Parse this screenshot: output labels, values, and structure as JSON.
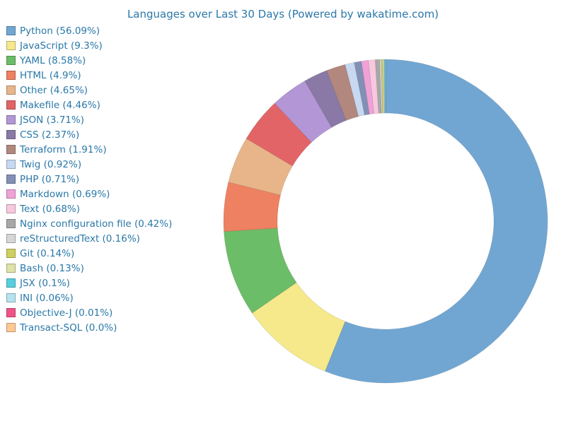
{
  "chart_data": {
    "type": "pie",
    "title": "Languages over Last 30 Days (Powered by wakatime.com)",
    "legend_position": "left",
    "slices": [
      {
        "label": "Python (56.09%)",
        "value": 56.09,
        "color": "#71a6d2"
      },
      {
        "label": "JavaScript (9.3%)",
        "value": 9.3,
        "color": "#f6e98c"
      },
      {
        "label": "YAML (8.58%)",
        "value": 8.58,
        "color": "#6cbd67"
      },
      {
        "label": "HTML (4.9%)",
        "value": 4.9,
        "color": "#ed8161"
      },
      {
        "label": "Other (4.65%)",
        "value": 4.65,
        "color": "#e8b58a"
      },
      {
        "label": "Makefile (4.46%)",
        "value": 4.46,
        "color": "#e26467"
      },
      {
        "label": "JSON (3.71%)",
        "value": 3.71,
        "color": "#b396d5"
      },
      {
        "label": "CSS (2.37%)",
        "value": 2.37,
        "color": "#8a79a6"
      },
      {
        "label": "Terraform (1.91%)",
        "value": 1.91,
        "color": "#b2877e"
      },
      {
        "label": "Twig (0.92%)",
        "value": 0.92,
        "color": "#c7d8f1"
      },
      {
        "label": "PHP (0.71%)",
        "value": 0.71,
        "color": "#8390b6"
      },
      {
        "label": "Markdown (0.69%)",
        "value": 0.69,
        "color": "#f0a1d6"
      },
      {
        "label": "Text (0.68%)",
        "value": 0.68,
        "color": "#f8c8de"
      },
      {
        "label": "Nginx configuration file (0.42%)",
        "value": 0.42,
        "color": "#a8a8a8"
      },
      {
        "label": "reStructuredText (0.16%)",
        "value": 0.16,
        "color": "#d6d6d6"
      },
      {
        "label": "Git (0.14%)",
        "value": 0.14,
        "color": "#cfcf5e"
      },
      {
        "label": "Bash (0.13%)",
        "value": 0.13,
        "color": "#dfe3a8"
      },
      {
        "label": "JSX (0.1%)",
        "value": 0.1,
        "color": "#57cfe0"
      },
      {
        "label": "INI (0.06%)",
        "value": 0.06,
        "color": "#b5e3ee"
      },
      {
        "label": "Objective-J (0.01%)",
        "value": 0.01,
        "color": "#f2528a"
      },
      {
        "label": "Transact-SQL (0.0%)",
        "value": 0.0,
        "color": "#fdc894"
      }
    ]
  }
}
